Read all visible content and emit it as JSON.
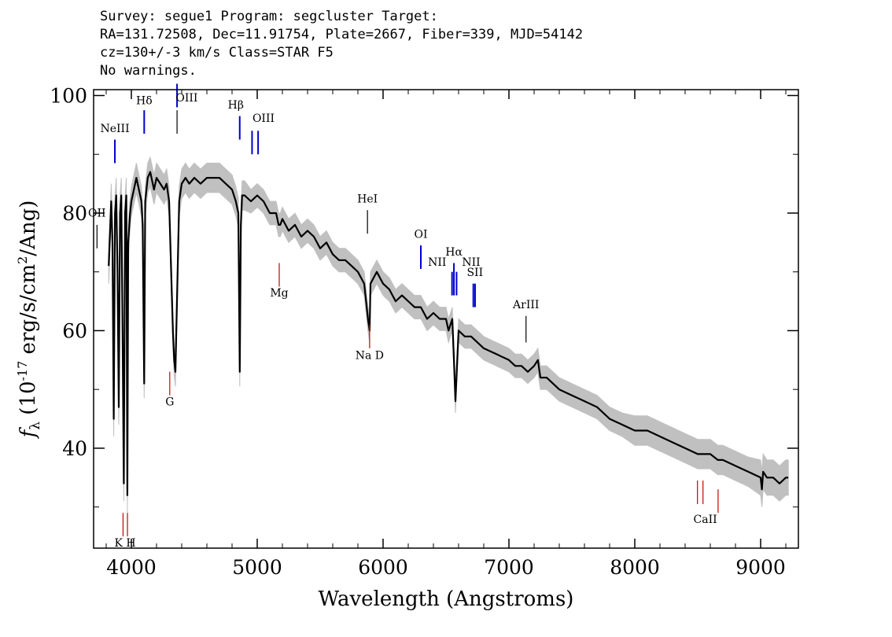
{
  "header": {
    "line1": "Survey: segue1 Program: segcluster Target:",
    "line2": "RA=131.72508, Dec=11.91754, Plate=2667, Fiber=339, MJD=54142",
    "line3": "cz=130+/-3 km/s Class=STAR F5",
    "line4": "No warnings."
  },
  "chart_data": {
    "type": "line",
    "title": "",
    "xlabel": "Wavelength (Angstroms)",
    "ylabel": "fλ (10^-17 erg/s/cm^2/Ang)",
    "xlim": [
      3700,
      9300
    ],
    "ylim": [
      23,
      101
    ],
    "x_ticks": [
      4000,
      5000,
      6000,
      7000,
      8000,
      9000
    ],
    "y_ticks": [
      40,
      60,
      80,
      100
    ],
    "grid": false,
    "colors": {
      "flux": "#000000",
      "error_band": "#c0c0c0",
      "emission": "#0000cc",
      "absorption": "#cc0000",
      "sky": "#000000"
    },
    "series": [
      {
        "role": "flux",
        "x": [
          3820,
          3840,
          3850,
          3860,
          3870,
          3880,
          3890,
          3900,
          3910,
          3920,
          3930,
          3940,
          3950,
          3960,
          3968,
          3975,
          3990,
          4000,
          4020,
          4040,
          4060,
          4080,
          4090,
          4102,
          4110,
          4130,
          4150,
          4180,
          4200,
          4230,
          4260,
          4280,
          4300,
          4330,
          4340,
          4350,
          4380,
          4400,
          4430,
          4460,
          4500,
          4550,
          4600,
          4650,
          4700,
          4750,
          4800,
          4830,
          4850,
          4861,
          4870,
          4880,
          4900,
          4950,
          5000,
          5050,
          5100,
          5150,
          5170,
          5183,
          5200,
          5250,
          5300,
          5350,
          5400,
          5450,
          5500,
          5550,
          5600,
          5650,
          5700,
          5750,
          5800,
          5850,
          5880,
          5893,
          5900,
          5950,
          6000,
          6050,
          6100,
          6150,
          6200,
          6250,
          6300,
          6350,
          6400,
          6450,
          6500,
          6520,
          6550,
          6563,
          6575,
          6600,
          6650,
          6700,
          6800,
          6900,
          7000,
          7050,
          7100,
          7150,
          7200,
          7230,
          7250,
          7300,
          7400,
          7500,
          7600,
          7700,
          7800,
          7900,
          8000,
          8100,
          8200,
          8300,
          8400,
          8500,
          8600,
          8660,
          8700,
          8800,
          8900,
          9000,
          9010,
          9020,
          9050,
          9100,
          9150,
          9200,
          9220
        ],
        "y": [
          71,
          82,
          75,
          45,
          80,
          83,
          70,
          47,
          80,
          83,
          60,
          34,
          80,
          83,
          32,
          75,
          80,
          82,
          84,
          86,
          84,
          82,
          78,
          51,
          82,
          86,
          87,
          84,
          86,
          85,
          84,
          85,
          82,
          60,
          55,
          53,
          82,
          85,
          86,
          85,
          86,
          85,
          86,
          86,
          86,
          85,
          84,
          82,
          80,
          53,
          78,
          83,
          83,
          82,
          83,
          82,
          80,
          80,
          78,
          78,
          79,
          77,
          78,
          76,
          77,
          76,
          74,
          75,
          73,
          72,
          72,
          71,
          70,
          68,
          62,
          60,
          68,
          70,
          68,
          67,
          65,
          66,
          65,
          64,
          64,
          62,
          63,
          62,
          62,
          60,
          62,
          55,
          48,
          60,
          59,
          59,
          57,
          56,
          55,
          54,
          54,
          53,
          54,
          55,
          52,
          52,
          50,
          49,
          48,
          47,
          45,
          44,
          43,
          43,
          42,
          41,
          40,
          39,
          39,
          38,
          38,
          37,
          36,
          35,
          33,
          36,
          35,
          35,
          34,
          35,
          35
        ],
        "err": [
          3,
          3,
          3,
          3,
          3,
          3,
          3,
          3,
          3,
          3,
          3,
          3,
          3,
          3,
          3,
          3,
          2.5,
          2.5,
          2.5,
          2.5,
          2.5,
          2.5,
          2.5,
          2.5,
          2.5,
          2.5,
          2.5,
          2.5,
          2.5,
          2.5,
          2.5,
          2.5,
          2.5,
          2.5,
          2.5,
          2.5,
          2.5,
          2.5,
          2.5,
          2.5,
          2.5,
          2.5,
          2.5,
          2.5,
          2.5,
          2.5,
          2.5,
          2.5,
          2.5,
          2.5,
          2.5,
          2.5,
          2.5,
          2,
          2,
          2,
          2,
          2,
          2,
          2,
          2,
          2,
          2,
          2,
          2,
          2,
          2,
          2,
          2,
          2,
          2,
          2,
          2,
          2,
          2,
          2,
          2,
          2,
          2,
          2,
          2,
          2,
          2,
          2,
          2,
          2,
          2,
          2,
          2,
          2,
          2,
          2,
          2,
          2,
          2,
          2,
          2,
          2,
          2,
          2,
          2,
          2,
          2,
          2,
          2,
          2,
          2,
          2,
          2,
          2,
          2,
          2,
          2.5,
          2.5,
          2.5,
          2.5,
          2.5,
          2.5,
          2.5,
          2.5,
          2.5,
          2.5,
          2.5,
          3,
          3,
          3,
          3,
          3,
          3,
          3,
          3
        ]
      }
    ],
    "line_markers": [
      {
        "label": "NeIII",
        "x": 3869,
        "y0": 88.5,
        "y1": 92.5,
        "kind": "emission",
        "label_above": true
      },
      {
        "label": "Hδ",
        "x": 4102,
        "y0": 93.5,
        "y1": 97.5,
        "kind": "emission",
        "label_above": true
      },
      {
        "label": "OIII",
        "x": 4363,
        "y0": 98,
        "y1": 102,
        "kind": "emission",
        "label_above": false
      },
      {
        "label": "OIII",
        "x": 4363,
        "y0": 93.5,
        "y1": 97.5,
        "kind": "sky",
        "label_above": false
      },
      {
        "label": "Hβ",
        "x": 4861,
        "y0": 92.5,
        "y1": 96.5,
        "kind": "emission",
        "label_above": true
      },
      {
        "label": "OIII",
        "x": 4959,
        "y0": 90,
        "y1": 94,
        "kind": "emission",
        "label_above": true
      },
      {
        "label": "OIII",
        "x": 5007,
        "y0": 90,
        "y1": 94,
        "kind": "emission",
        "label_above": false
      },
      {
        "label": "HeI",
        "x": 5876,
        "y0": 76.5,
        "y1": 80.5,
        "kind": "sky",
        "label_above": true
      },
      {
        "label": "OI",
        "x": 6300,
        "y0": 70.5,
        "y1": 74.5,
        "kind": "emission",
        "label_above": true
      },
      {
        "label": "NII",
        "x": 6548,
        "y0": 66,
        "y1": 70,
        "kind": "emission",
        "label_above": true
      },
      {
        "label": "Hα",
        "x": 6563,
        "y0": 66,
        "y1": 71.5,
        "kind": "emission",
        "label_above": true
      },
      {
        "label": "NII",
        "x": 6584,
        "y0": 66,
        "y1": 70,
        "kind": "emission",
        "label_above": true
      },
      {
        "label": "SII",
        "x": 6717,
        "y0": 64,
        "y1": 68,
        "kind": "emission",
        "label_above": true
      },
      {
        "label": "SII",
        "x": 6731,
        "y0": 64,
        "y1": 68,
        "kind": "emission",
        "label_above": false
      },
      {
        "label": "ArIII",
        "x": 7136,
        "y0": 58,
        "y1": 62.5,
        "kind": "sky",
        "label_above": true
      },
      {
        "label": "OII",
        "x": 3727,
        "y0": 74,
        "y1": 78,
        "kind": "sky",
        "label_above": true
      },
      {
        "label": "Mg",
        "x": 5175,
        "y0": 67.5,
        "y1": 71.5,
        "kind": "absorption",
        "label_above": false
      },
      {
        "label": "Na D",
        "x": 5893,
        "y0": 57,
        "y1": 61,
        "kind": "absorption",
        "label_above": false
      },
      {
        "label": "G",
        "x": 4305,
        "y0": 49,
        "y1": 53,
        "kind": "absorption",
        "label_above": false
      },
      {
        "label": "K",
        "x": 3934,
        "y0": 25,
        "y1": 29,
        "kind": "absorption",
        "label_above": false
      },
      {
        "label": "H",
        "x": 3969,
        "y0": 25,
        "y1": 29,
        "kind": "absorption",
        "label_above": false
      },
      {
        "label": "CaII",
        "x": 8498,
        "y0": 30.5,
        "y1": 34.5,
        "kind": "absorption",
        "label_above": false
      },
      {
        "label": "CaII",
        "x": 8542,
        "y0": 30.5,
        "y1": 34.5,
        "kind": "absorption",
        "label_above": false
      },
      {
        "label": "CaII",
        "x": 8662,
        "y0": 29,
        "y1": 33,
        "kind": "absorption",
        "label_above": false
      }
    ],
    "marker_labels": [
      {
        "text": "NeIII",
        "x": 3869,
        "y": 93.8
      },
      {
        "text": "Hδ",
        "x": 4102,
        "y": 98.5
      },
      {
        "text": "OIII",
        "x": 4440,
        "y": 99
      },
      {
        "text": "Hβ",
        "x": 4830,
        "y": 97.8
      },
      {
        "text": "OIII",
        "x": 5050,
        "y": 95.5
      },
      {
        "text": "HeI",
        "x": 5876,
        "y": 81.8
      },
      {
        "text": "OI",
        "x": 6300,
        "y": 75.8
      },
      {
        "text": "NII",
        "x": 6430,
        "y": 71
      },
      {
        "text": "Hα",
        "x": 6563,
        "y": 72.8
      },
      {
        "text": "NII",
        "x": 6700,
        "y": 71
      },
      {
        "text": "SII",
        "x": 6730,
        "y": 69.3
      },
      {
        "text": "ArIII",
        "x": 7136,
        "y": 63.8
      },
      {
        "text": "OII",
        "x": 3727,
        "y": 79.4
      },
      {
        "text": "Mg",
        "x": 5175,
        "y": 65.8
      },
      {
        "text": "Na D",
        "x": 5893,
        "y": 55.2
      },
      {
        "text": "G",
        "x": 4305,
        "y": 47.3
      },
      {
        "text": "K H",
        "x": 3950,
        "y": 23.3
      },
      {
        "text": "CaII",
        "x": 8560,
        "y": 27.3
      }
    ]
  }
}
